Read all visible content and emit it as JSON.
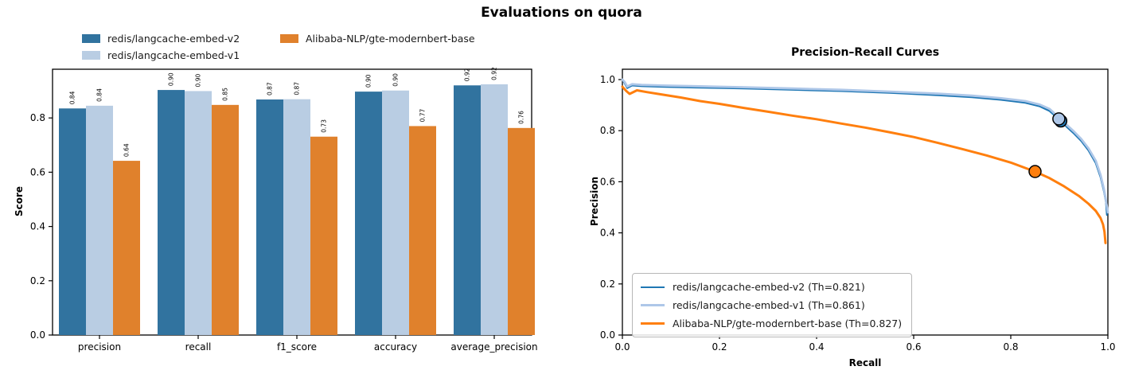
{
  "figure_title": "Evaluations on quora",
  "chart_data": [
    {
      "type": "bar",
      "title": "Evaluations on quora",
      "ylabel": "Score",
      "xlabel": "",
      "ylim": [
        0.0,
        0.98
      ],
      "grid": false,
      "y_ticks": [
        "0.0",
        "0.2",
        "0.4",
        "0.6",
        "0.8"
      ],
      "categories": [
        "precision",
        "recall",
        "f1_score",
        "accuracy",
        "average_precision"
      ],
      "series": [
        {
          "name": "redis/langcache-embed-v2",
          "color": "#31739f",
          "values": [
            0.835,
            0.903,
            0.868,
            0.897,
            0.92
          ],
          "labels": [
            "0.84",
            "0.90",
            "0.87",
            "0.90",
            "0.92"
          ]
        },
        {
          "name": "redis/langcache-embed-v1",
          "color": "#b9cde3",
          "values": [
            0.845,
            0.899,
            0.869,
            0.901,
            0.924
          ],
          "labels": [
            "0.84",
            "0.90",
            "0.87",
            "0.90",
            "0.92"
          ]
        },
        {
          "name": "Alibaba-NLP/gte-modernbert-base",
          "color": "#e0812c",
          "values": [
            0.642,
            0.848,
            0.731,
            0.77,
            0.763
          ],
          "labels": [
            "0.64",
            "0.85",
            "0.73",
            "0.77",
            "0.76"
          ]
        }
      ],
      "legend_position": "upper left, outside axes, 2 columns"
    },
    {
      "type": "line",
      "title": "Precision–Recall Curves",
      "xlabel": "Recall",
      "ylabel": "Precision",
      "xlim": [
        0.0,
        1.0
      ],
      "ylim": [
        0.0,
        1.05
      ],
      "grid": false,
      "x_ticks": [
        "0.0",
        "0.2",
        "0.4",
        "0.6",
        "0.8",
        "1.0"
      ],
      "y_ticks": [
        "0.0",
        "0.2",
        "0.4",
        "0.6",
        "0.8",
        "1.0"
      ],
      "legend_position": "lower left",
      "series": [
        {
          "name": "redis/langcache-embed-v2",
          "legend_label": "redis/langcache-embed-v2 (Th=0.821)",
          "threshold": 0.821,
          "color": "#1f77b4",
          "linewidth": 2.2,
          "marker": {
            "recall": 0.903,
            "precision": 0.838
          },
          "points": [
            [
              0.0,
              1.0
            ],
            [
              0.005,
              0.985
            ],
            [
              0.01,
              0.967
            ],
            [
              0.02,
              0.977
            ],
            [
              0.04,
              0.974
            ],
            [
              0.08,
              0.972
            ],
            [
              0.15,
              0.969
            ],
            [
              0.25,
              0.965
            ],
            [
              0.35,
              0.96
            ],
            [
              0.45,
              0.955
            ],
            [
              0.55,
              0.948
            ],
            [
              0.65,
              0.939
            ],
            [
              0.72,
              0.931
            ],
            [
              0.78,
              0.921
            ],
            [
              0.83,
              0.909
            ],
            [
              0.86,
              0.895
            ],
            [
              0.88,
              0.877
            ],
            [
              0.9,
              0.843
            ],
            [
              0.915,
              0.815
            ],
            [
              0.93,
              0.789
            ],
            [
              0.945,
              0.76
            ],
            [
              0.96,
              0.723
            ],
            [
              0.975,
              0.673
            ],
            [
              0.985,
              0.618
            ],
            [
              0.992,
              0.562
            ],
            [
              0.996,
              0.52
            ],
            [
              0.998,
              0.47
            ]
          ]
        },
        {
          "name": "redis/langcache-embed-v1",
          "legend_label": "redis/langcache-embed-v1 (Th=0.861)",
          "threshold": 0.861,
          "color": "#aec7e8",
          "linewidth": 2.8,
          "marker": {
            "recall": 0.899,
            "precision": 0.846
          },
          "points": [
            [
              0.0,
              1.0
            ],
            [
              0.005,
              0.99
            ],
            [
              0.01,
              0.973
            ],
            [
              0.02,
              0.982
            ],
            [
              0.04,
              0.979
            ],
            [
              0.08,
              0.977
            ],
            [
              0.15,
              0.974
            ],
            [
              0.25,
              0.97
            ],
            [
              0.35,
              0.965
            ],
            [
              0.45,
              0.96
            ],
            [
              0.55,
              0.953
            ],
            [
              0.65,
              0.945
            ],
            [
              0.72,
              0.937
            ],
            [
              0.78,
              0.927
            ],
            [
              0.83,
              0.916
            ],
            [
              0.86,
              0.902
            ],
            [
              0.88,
              0.885
            ],
            [
              0.9,
              0.85
            ],
            [
              0.915,
              0.823
            ],
            [
              0.93,
              0.797
            ],
            [
              0.945,
              0.768
            ],
            [
              0.96,
              0.731
            ],
            [
              0.975,
              0.682
            ],
            [
              0.985,
              0.627
            ],
            [
              0.992,
              0.571
            ],
            [
              0.997,
              0.515
            ],
            [
              1.0,
              0.48
            ]
          ]
        },
        {
          "name": "Alibaba-NLP/gte-modernbert-base",
          "legend_label": "Alibaba-NLP/gte-modernbert-base (Th=0.827)",
          "threshold": 0.827,
          "color": "#ff7f0e",
          "linewidth": 3,
          "marker": {
            "recall": 0.85,
            "precision": 0.64
          },
          "points": [
            [
              0.0,
              0.972
            ],
            [
              0.008,
              0.955
            ],
            [
              0.015,
              0.944
            ],
            [
              0.03,
              0.958
            ],
            [
              0.05,
              0.951
            ],
            [
              0.08,
              0.942
            ],
            [
              0.12,
              0.93
            ],
            [
              0.16,
              0.916
            ],
            [
              0.2,
              0.905
            ],
            [
              0.25,
              0.889
            ],
            [
              0.3,
              0.874
            ],
            [
              0.35,
              0.859
            ],
            [
              0.4,
              0.845
            ],
            [
              0.45,
              0.828
            ],
            [
              0.5,
              0.812
            ],
            [
              0.55,
              0.794
            ],
            [
              0.6,
              0.775
            ],
            [
              0.65,
              0.752
            ],
            [
              0.7,
              0.728
            ],
            [
              0.75,
              0.703
            ],
            [
              0.8,
              0.675
            ],
            [
              0.85,
              0.64
            ],
            [
              0.88,
              0.614
            ],
            [
              0.91,
              0.582
            ],
            [
              0.94,
              0.545
            ],
            [
              0.96,
              0.514
            ],
            [
              0.975,
              0.486
            ],
            [
              0.985,
              0.458
            ],
            [
              0.99,
              0.433
            ],
            [
              0.993,
              0.405
            ],
            [
              0.995,
              0.36
            ]
          ]
        }
      ]
    }
  ]
}
